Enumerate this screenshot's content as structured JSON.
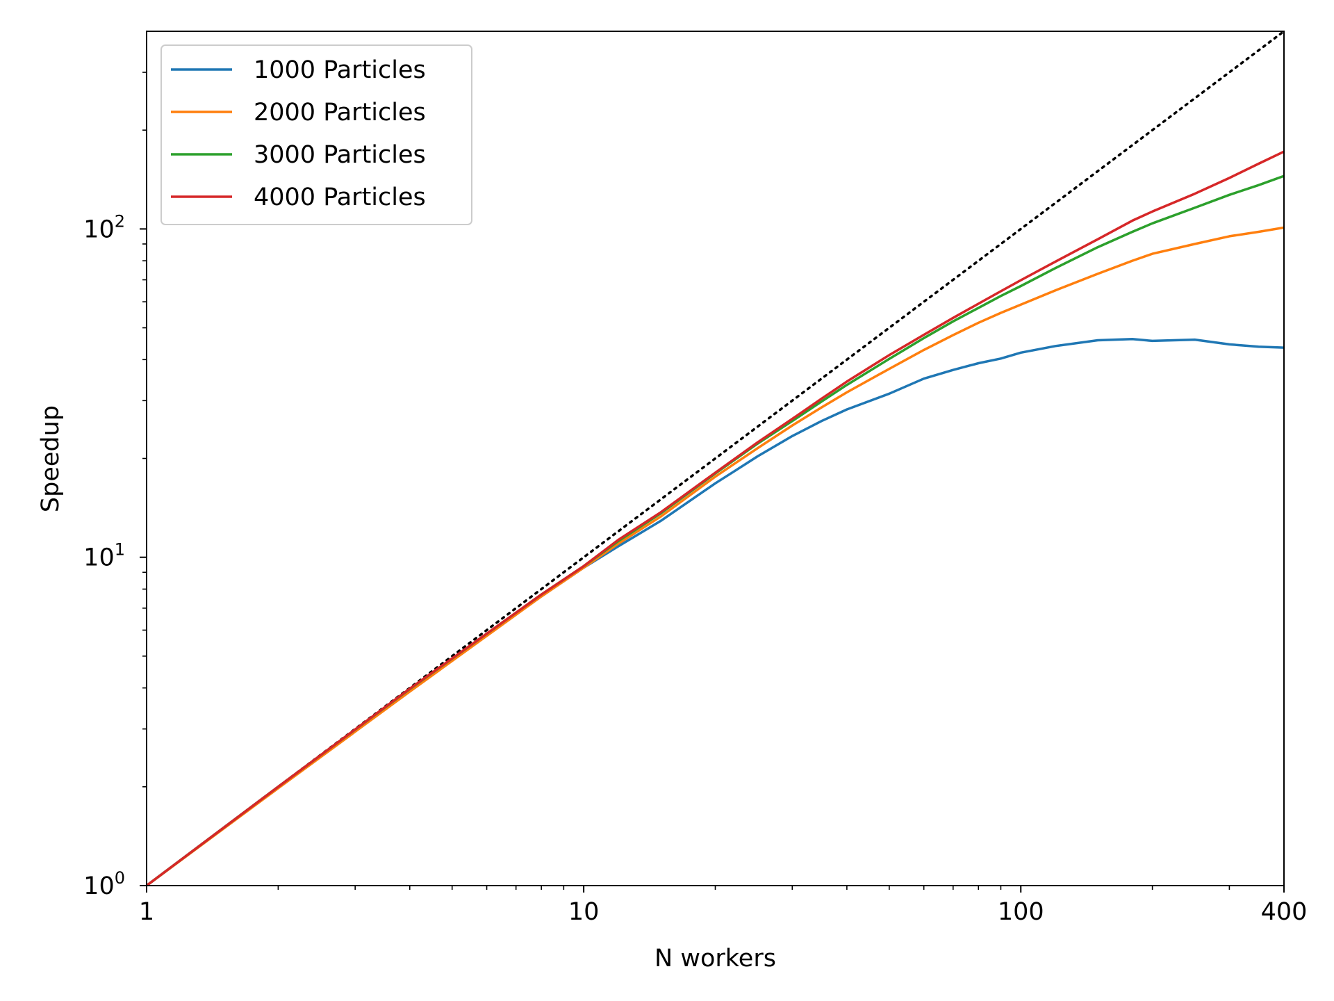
{
  "chart_data": {
    "type": "line",
    "xlabel": "N workers",
    "ylabel": "Speedup",
    "x_scale": "log",
    "y_scale": "log",
    "xlim": [
      1,
      400
    ],
    "ylim": [
      1,
      400
    ],
    "x_ticks": [
      {
        "value": 1,
        "label": "1"
      },
      {
        "value": 10,
        "label": "10"
      },
      {
        "value": 100,
        "label": "100"
      },
      {
        "value": 400,
        "label": "400"
      }
    ],
    "y_ticks": [
      {
        "value": 1,
        "base": "10",
        "exp": "0"
      },
      {
        "value": 10,
        "base": "10",
        "exp": "1"
      },
      {
        "value": 100,
        "base": "10",
        "exp": "2"
      }
    ],
    "grid": false,
    "legend_position": "top-left",
    "reference_line": {
      "style": "dotted",
      "color": "#000000",
      "x": [
        1,
        400
      ],
      "y": [
        1,
        400
      ]
    },
    "series": [
      {
        "name": "1000 Particles",
        "color": "#1f77b4",
        "x": [
          1,
          2,
          4,
          8,
          10,
          12,
          15,
          20,
          22,
          25,
          30,
          35,
          40,
          50,
          60,
          70,
          80,
          90,
          100,
          120,
          150,
          180,
          200,
          250,
          300,
          350,
          400
        ],
        "y": [
          1,
          2,
          3.95,
          7.6,
          9.3,
          10.8,
          12.9,
          16.8,
          18.2,
          20.3,
          23.4,
          26.0,
          28.2,
          31.5,
          35.0,
          37.2,
          39.0,
          40.3,
          42.0,
          44.0,
          45.8,
          46.2,
          45.6,
          46.0,
          44.5,
          43.8,
          43.5
        ]
      },
      {
        "name": "2000 Particles",
        "color": "#ff7f0e",
        "x": [
          1,
          2,
          4,
          8,
          10,
          12,
          15,
          20,
          25,
          30,
          35,
          40,
          50,
          60,
          70,
          80,
          90,
          100,
          120,
          150,
          180,
          200,
          250,
          300,
          350,
          400
        ],
        "y": [
          1,
          1.98,
          3.9,
          7.6,
          9.3,
          11.0,
          13.3,
          17.6,
          21.5,
          25.2,
          28.6,
          31.8,
          37.5,
          42.8,
          47.5,
          51.8,
          55.5,
          58.8,
          65.0,
          73.0,
          80.0,
          84.0,
          90.0,
          95.0,
          98.0,
          101.0
        ]
      },
      {
        "name": "3000 Particles",
        "color": "#2ca02c",
        "x": [
          1,
          2,
          4,
          8,
          10,
          12,
          15,
          20,
          25,
          30,
          35,
          40,
          50,
          60,
          70,
          80,
          90,
          100,
          120,
          150,
          180,
          200,
          250,
          300,
          350,
          400
        ],
        "y": [
          1,
          2,
          3.97,
          7.7,
          9.4,
          11.2,
          13.6,
          18.0,
          22.2,
          26.0,
          29.8,
          33.5,
          40.2,
          46.5,
          52.3,
          57.5,
          62.5,
          67.0,
          76.0,
          88.0,
          98.0,
          104.0,
          116.0,
          127.0,
          136.0,
          145.0
        ]
      },
      {
        "name": "4000 Particles",
        "color": "#d62728",
        "x": [
          1,
          2,
          4,
          8,
          10,
          12,
          15,
          20,
          25,
          30,
          35,
          40,
          50,
          60,
          70,
          80,
          90,
          100,
          120,
          150,
          180,
          200,
          250,
          300,
          350,
          400
        ],
        "y": [
          1,
          2,
          3.98,
          7.7,
          9.4,
          11.3,
          13.7,
          18.1,
          22.4,
          26.4,
          30.4,
          34.3,
          41.3,
          47.6,
          53.6,
          59.2,
          64.6,
          69.8,
          79.5,
          93.0,
          106.0,
          113.0,
          128.0,
          143.0,
          158.0,
          172.0
        ]
      }
    ]
  }
}
